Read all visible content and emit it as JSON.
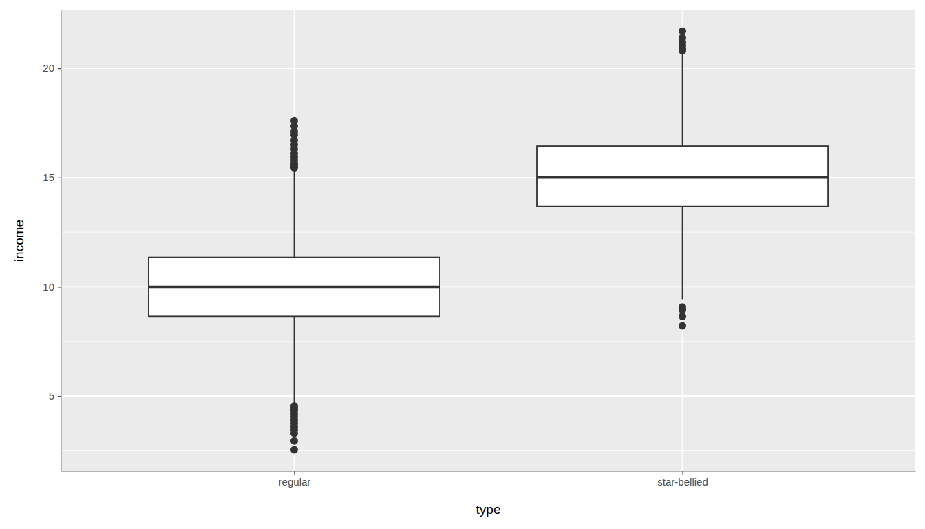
{
  "chart_data": {
    "type": "box",
    "x_label": "type",
    "y_label": "income",
    "categories": [
      "regular",
      "star-bellied"
    ],
    "boxes": [
      {
        "min": 4.65,
        "q1": 8.65,
        "median": 10.0,
        "q3": 11.35,
        "max": 15.35,
        "outliers": [
          15.45,
          15.55,
          15.65,
          15.8,
          15.95,
          16.1,
          16.3,
          16.5,
          16.7,
          16.95,
          17.1,
          17.35,
          17.6,
          4.55,
          4.45,
          4.35,
          4.2,
          4.05,
          3.9,
          3.75,
          3.6,
          3.45,
          3.3,
          2.95,
          2.55
        ]
      },
      {
        "min": 9.43,
        "q1": 13.68,
        "median": 15.0,
        "q3": 16.44,
        "max": 20.65,
        "outliers": [
          20.8,
          20.9,
          21.05,
          21.2,
          21.4,
          21.7,
          9.08,
          8.95,
          8.65,
          8.22
        ]
      }
    ],
    "ylim": [
      1.57,
      22.65
    ],
    "yticks": [
      5,
      10,
      15,
      20
    ],
    "grid": true
  }
}
